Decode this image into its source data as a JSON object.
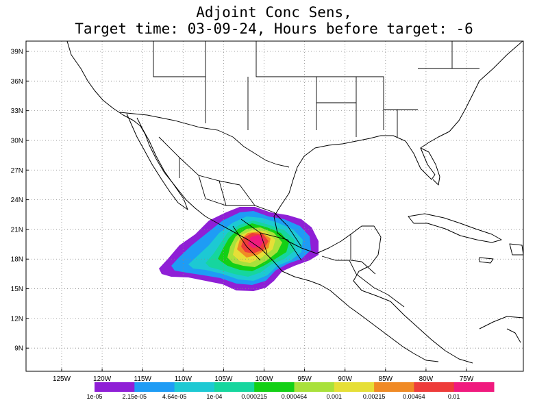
{
  "title": {
    "line1": "Adjoint Conc Sens,",
    "line2": "Target time: 03-09-24, Hours before target: -6"
  },
  "map": {
    "lat_labels": [
      "39N",
      "36N",
      "33N",
      "30N",
      "27N",
      "24N",
      "21N",
      "18N",
      "15N",
      "12N",
      "9N"
    ],
    "lon_labels": [
      "125W",
      "120W",
      "115W",
      "110W",
      "105W",
      "100W",
      "95W",
      "90W",
      "85W",
      "80W",
      "75W"
    ],
    "grid": true
  },
  "colorbar": {
    "colors": [
      "#8f1fd6",
      "#1e9cf5",
      "#1dc9d3",
      "#16d69e",
      "#13d016",
      "#a9e13b",
      "#e6df37",
      "#f08a25",
      "#ee3c3a",
      "#f01a7e"
    ],
    "labels": [
      "1e-05",
      "2.15e-05",
      "4.64e-05",
      "1e-04",
      "0.000215",
      "0.000464",
      "0.001",
      "0.00215",
      "0.00464",
      "0.01"
    ]
  }
}
